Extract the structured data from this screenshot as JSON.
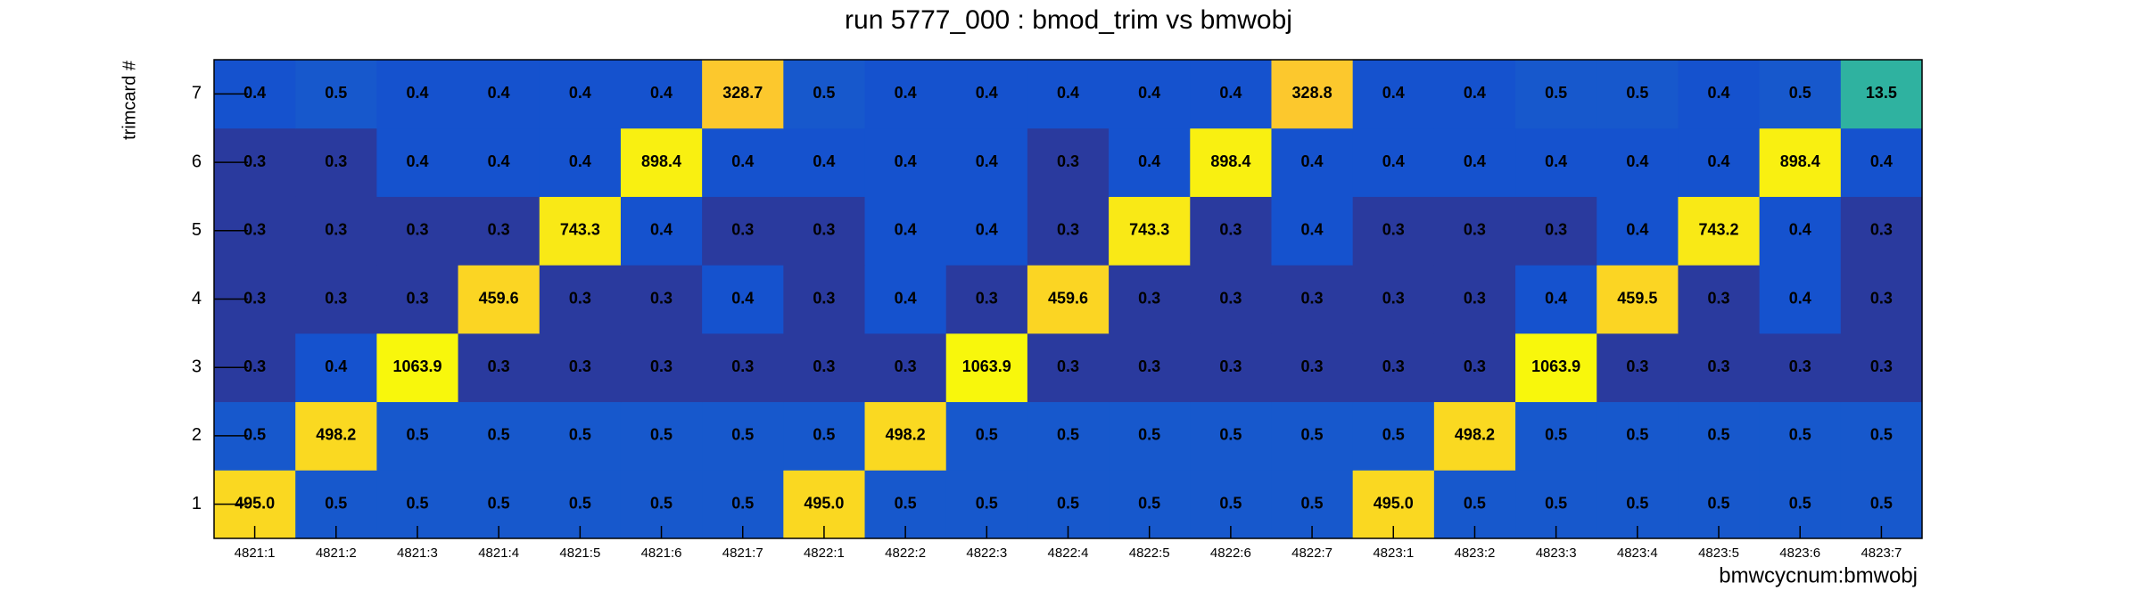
{
  "chart_data": {
    "type": "heatmap",
    "title": "run 5777_000 : bmod_trim vs bmwobj",
    "x_label": "bmwcycnum:bmwobj",
    "y_label": "trimcard #",
    "x_categories": [
      "4821:1",
      "4821:2",
      "4821:3",
      "4821:4",
      "4821:5",
      "4821:6",
      "4821:7",
      "4822:1",
      "4822:2",
      "4822:3",
      "4822:4",
      "4822:5",
      "4822:6",
      "4822:7",
      "4823:1",
      "4823:2",
      "4823:3",
      "4823:4",
      "4823:5",
      "4823:6",
      "4823:7"
    ],
    "y_categories": [
      "1",
      "2",
      "3",
      "4",
      "5",
      "6",
      "7"
    ],
    "logz": true,
    "palette": [
      {
        "stop": 0,
        "color": "#2a3a9e"
      },
      {
        "stop": 0.03,
        "color": "#1551cf"
      },
      {
        "stop": 0.47,
        "color": "#2fb3a0"
      },
      {
        "stop": 0.85,
        "color": "#fcc62e"
      },
      {
        "stop": 1,
        "color": "#f8f70c"
      }
    ],
    "values": [
      [
        495.0,
        0.5,
        0.5,
        0.5,
        0.5,
        0.5,
        0.5,
        495.0,
        0.5,
        0.5,
        0.5,
        0.5,
        0.5,
        0.5,
        495.0,
        0.5,
        0.5,
        0.5,
        0.5,
        0.5,
        0.5
      ],
      [
        0.5,
        498.2,
        0.5,
        0.5,
        0.5,
        0.5,
        0.5,
        0.5,
        498.2,
        0.5,
        0.5,
        0.5,
        0.5,
        0.5,
        0.5,
        498.2,
        0.5,
        0.5,
        0.5,
        0.5,
        0.5
      ],
      [
        0.3,
        0.4,
        1063.9,
        0.3,
        0.3,
        0.3,
        0.3,
        0.3,
        0.3,
        1063.9,
        0.3,
        0.3,
        0.3,
        0.3,
        0.3,
        0.3,
        1063.9,
        0.3,
        0.3,
        0.3,
        0.3
      ],
      [
        0.3,
        0.3,
        0.3,
        459.6,
        0.3,
        0.3,
        0.4,
        0.3,
        0.4,
        0.3,
        459.6,
        0.3,
        0.3,
        0.3,
        0.3,
        0.3,
        0.4,
        459.5,
        0.3,
        0.4,
        0.3
      ],
      [
        0.3,
        0.3,
        0.3,
        0.3,
        743.3,
        0.4,
        0.3,
        0.3,
        0.4,
        0.4,
        0.3,
        743.3,
        0.3,
        0.4,
        0.3,
        0.3,
        0.3,
        0.4,
        743.2,
        0.4,
        0.3
      ],
      [
        0.3,
        0.3,
        0.4,
        0.4,
        0.4,
        898.4,
        0.4,
        0.4,
        0.4,
        0.4,
        0.3,
        0.4,
        898.4,
        0.4,
        0.4,
        0.4,
        0.4,
        0.4,
        0.4,
        898.4,
        0.4
      ],
      [
        0.4,
        0.5,
        0.4,
        0.4,
        0.4,
        0.4,
        328.7,
        0.5,
        0.4,
        0.4,
        0.4,
        0.4,
        0.4,
        328.8,
        0.4,
        0.4,
        0.5,
        0.5,
        0.4,
        0.5,
        13.5
      ]
    ],
    "value_labels": [
      [
        "495.0",
        "0.5",
        "0.5",
        "0.5",
        "0.5",
        "0.5",
        "0.5",
        "495.0",
        "0.5",
        "0.5",
        "0.5",
        "0.5",
        "0.5",
        "0.5",
        "495.0",
        "0.5",
        "0.5",
        "0.5",
        "0.5",
        "0.5",
        "0.5"
      ],
      [
        "0.5",
        "498.2",
        "0.5",
        "0.5",
        "0.5",
        "0.5",
        "0.5",
        "0.5",
        "498.2",
        "0.5",
        "0.5",
        "0.5",
        "0.5",
        "0.5",
        "0.5",
        "498.2",
        "0.5",
        "0.5",
        "0.5",
        "0.5",
        "0.5"
      ],
      [
        "0.3",
        "0.4",
        "1063.9",
        "0.3",
        "0.3",
        "0.3",
        "0.3",
        "0.3",
        "0.3",
        "1063.9",
        "0.3",
        "0.3",
        "0.3",
        "0.3",
        "0.3",
        "0.3",
        "1063.9",
        "0.3",
        "0.3",
        "0.3",
        "0.3"
      ],
      [
        "0.3",
        "0.3",
        "0.3",
        "459.6",
        "0.3",
        "0.3",
        "0.4",
        "0.3",
        "0.4",
        "0.3",
        "459.6",
        "0.3",
        "0.3",
        "0.3",
        "0.3",
        "0.3",
        "0.4",
        "459.5",
        "0.3",
        "0.4",
        "0.3"
      ],
      [
        "0.3",
        "0.3",
        "0.3",
        "0.3",
        "743.3",
        "0.4",
        "0.3",
        "0.3",
        "0.4",
        "0.4",
        "0.3",
        "743.3",
        "0.3",
        "0.4",
        "0.3",
        "0.3",
        "0.3",
        "0.4",
        "743.2",
        "0.4",
        "0.3"
      ],
      [
        "0.3",
        "0.3",
        "0.4",
        "0.4",
        "0.4",
        "898.4",
        "0.4",
        "0.4",
        "0.4",
        "0.4",
        "0.3",
        "0.4",
        "898.4",
        "0.4",
        "0.4",
        "0.4",
        "0.4",
        "0.4",
        "0.4",
        "898.4",
        "0.4"
      ],
      [
        "0.4",
        "0.5",
        "0.4",
        "0.4",
        "0.4",
        "0.4",
        "328.7",
        "0.5",
        "0.4",
        "0.4",
        "0.4",
        "0.4",
        "0.4",
        "328.8",
        "0.4",
        "0.4",
        "0.5",
        "0.5",
        "0.4",
        "0.5",
        "13.5"
      ]
    ]
  }
}
